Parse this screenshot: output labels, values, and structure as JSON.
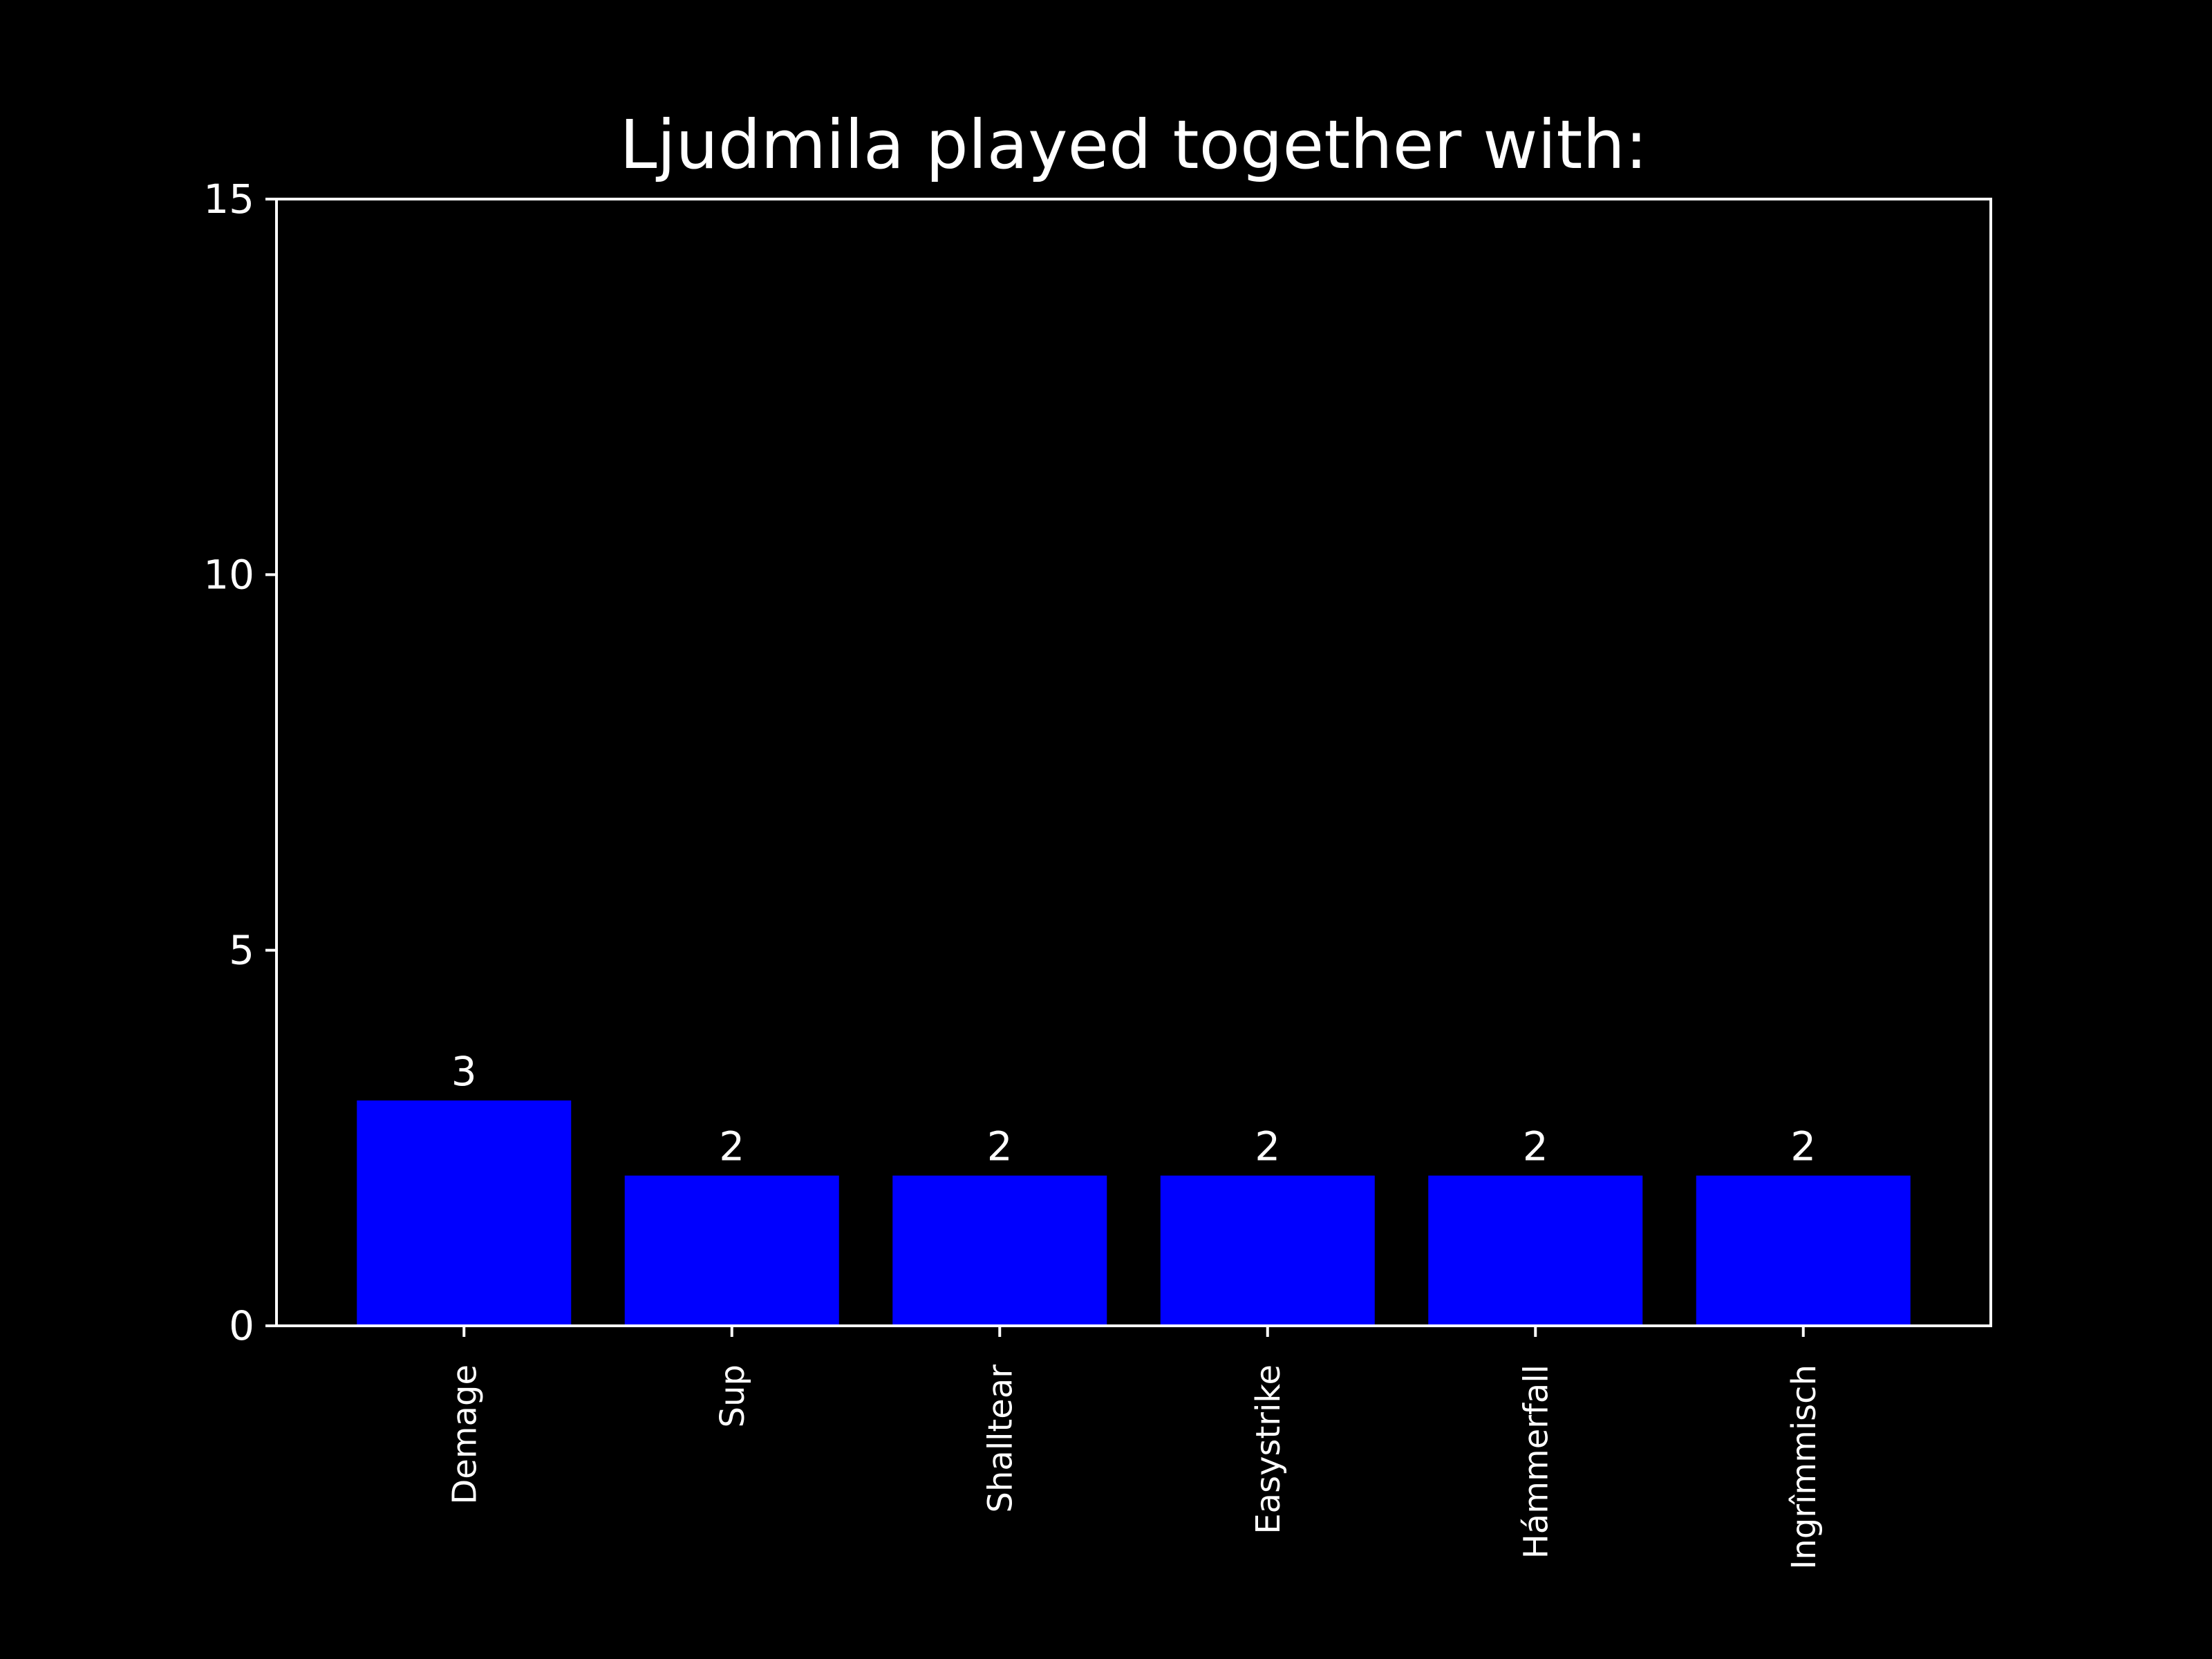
{
  "chart_data": {
    "type": "bar",
    "title": "Ljudmila played together with:",
    "xlabel": "",
    "ylabel": "",
    "categories": [
      "Demage",
      "Sup",
      "Shalltear",
      "Easystrike",
      "Hámmerfall",
      "Ingrîmmisch"
    ],
    "values": [
      3,
      2,
      2,
      2,
      2,
      2
    ],
    "value_labels": [
      "3",
      "2",
      "2",
      "2",
      "2",
      "2"
    ],
    "ylim": [
      0,
      15
    ],
    "yticks": [
      0,
      5,
      10,
      15
    ],
    "ytick_labels": [
      "0",
      "5",
      "10",
      "15"
    ],
    "grid": false,
    "legend": "none",
    "colors": {
      "background": "#000000",
      "bar": "#0000ff",
      "text": "#ffffff",
      "axes": "#ffffff"
    }
  }
}
